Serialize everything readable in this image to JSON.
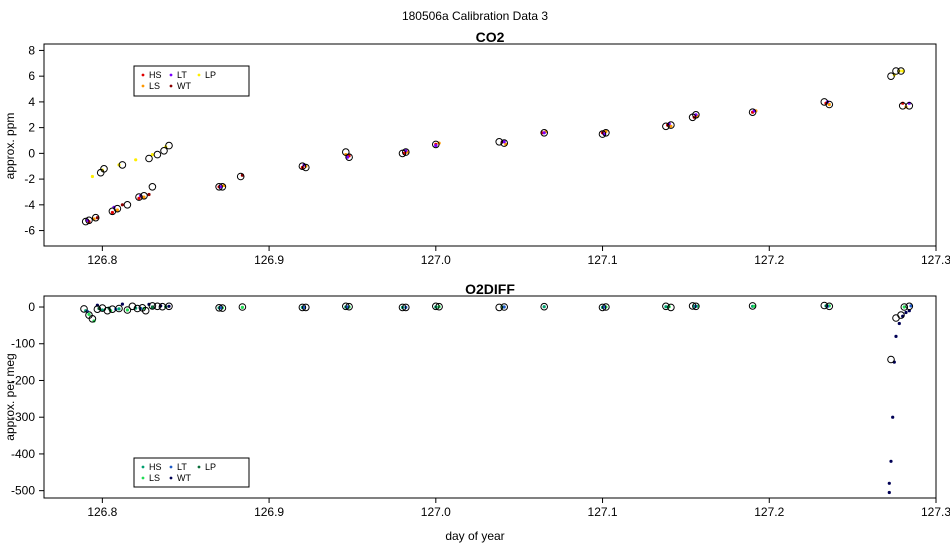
{
  "figure": {
    "title": "180506a   Calibration Data 3",
    "xlabel": "day of year"
  },
  "colors": {
    "HS": "#e00000",
    "LS": "#ff9900",
    "LT": "#7a00ff",
    "WT": "#8b0000",
    "LP": "#ffee00",
    "o2_HS": "#00a070",
    "o2_LS": "#22dd55",
    "o2_LT": "#1e5cc8",
    "o2_WT": "#000055",
    "o2_LP": "#0b6e3a",
    "marker_outline": "#000000"
  },
  "chart_data": [
    {
      "type": "scatter",
      "title": "CO2",
      "ylabel": "approx. ppm",
      "xlim": [
        126.765,
        127.3
      ],
      "ylim": [
        -7.2,
        8.5
      ],
      "xticks": [
        126.8,
        126.9,
        127.0,
        127.1,
        127.2,
        127.3
      ],
      "xtick_labels": [
        "126.8",
        "126.9",
        "127.0",
        "127.1",
        "127.2",
        "127.3"
      ],
      "yticks": [
        -6,
        -4,
        -2,
        0,
        2,
        4,
        6,
        8
      ],
      "ytick_labels": [
        "-6",
        "-4",
        "-2",
        "0",
        "2",
        "4",
        "6",
        "8"
      ],
      "legend": {
        "position": "top-left",
        "entries": [
          "HS",
          "LS",
          "LT",
          "WT",
          "LP"
        ]
      },
      "series": [
        {
          "name": "HS",
          "x": [
            126.792,
            126.806,
            126.822,
            126.87,
            126.92,
            126.948,
            126.981,
            127.0,
            127.04,
            127.064,
            127.1,
            127.139,
            127.155,
            127.19,
            127.234,
            127.28
          ],
          "y": [
            -5.3,
            -4.6,
            -3.5,
            -2.6,
            -1.1,
            -0.2,
            0.0,
            0.7,
            0.9,
            1.6,
            1.6,
            2.2,
            2.8,
            3.2,
            3.9,
            3.9
          ]
        },
        {
          "name": "LS",
          "x": [
            126.795,
            126.809,
            126.825,
            126.873,
            126.922,
            126.946,
            126.983,
            127.002,
            127.042,
            127.066,
            127.102,
            127.141,
            127.157,
            127.192,
            127.236,
            127.282
          ],
          "y": [
            -5.1,
            -4.4,
            -3.4,
            -2.5,
            -1.0,
            -0.1,
            0.1,
            0.8,
            0.7,
            1.7,
            1.7,
            2.1,
            2.9,
            3.3,
            3.8,
            3.6
          ]
        },
        {
          "name": "LT",
          "x": [
            126.791,
            126.807,
            126.823,
            126.871,
            126.921,
            126.947,
            126.982,
            127.0,
            127.041,
            127.065,
            127.101,
            127.14,
            127.156,
            127.191,
            127.235,
            127.284
          ],
          "y": [
            -5.2,
            -4.2,
            -3.3,
            -2.6,
            -0.9,
            -0.3,
            0.2,
            0.6,
            0.9,
            1.6,
            1.5,
            2.3,
            3.0,
            3.3,
            4.0,
            3.9
          ]
        },
        {
          "name": "WT",
          "x": [
            126.797,
            126.812,
            126.828,
            126.884
          ],
          "y": [
            -5.0,
            -4.0,
            -3.2,
            -1.7
          ]
        },
        {
          "name": "LP",
          "x": [
            126.794,
            126.8,
            126.81,
            126.82,
            126.83,
            126.838,
            127.275,
            127.278,
            127.28
          ],
          "y": [
            -1.8,
            -1.3,
            -0.9,
            -0.5,
            -0.1,
            0.5,
            6.1,
            6.4,
            6.4
          ]
        }
      ],
      "averages": {
        "x": [
          126.79,
          126.792,
          126.796,
          126.799,
          126.801,
          126.806,
          126.809,
          126.812,
          126.815,
          126.822,
          126.825,
          126.828,
          126.83,
          126.833,
          126.837,
          126.84,
          126.87,
          126.872,
          126.883,
          126.92,
          126.922,
          126.946,
          126.948,
          126.98,
          126.982,
          127.0,
          127.038,
          127.041,
          127.065,
          127.1,
          127.102,
          127.138,
          127.141,
          127.154,
          127.156,
          127.19,
          127.233,
          127.236,
          127.273,
          127.276,
          127.279,
          127.28,
          127.284
        ],
        "y": [
          -5.3,
          -5.2,
          -5.0,
          -1.5,
          -1.2,
          -4.5,
          -4.3,
          -0.9,
          -4.0,
          -3.4,
          -3.3,
          -0.4,
          -2.6,
          -0.1,
          0.2,
          0.6,
          -2.6,
          -2.6,
          -1.8,
          -1.0,
          -1.1,
          0.1,
          -0.3,
          0.0,
          0.1,
          0.7,
          0.9,
          0.8,
          1.6,
          1.5,
          1.6,
          2.1,
          2.2,
          2.8,
          3.0,
          3.2,
          4.0,
          3.8,
          6.0,
          6.4,
          6.4,
          3.7,
          3.7
        ]
      }
    },
    {
      "type": "scatter",
      "title": "O2DIFF",
      "ylabel": "approx. per meg",
      "xlim": [
        126.765,
        127.3
      ],
      "ylim": [
        -520,
        30
      ],
      "xticks": [
        126.8,
        126.9,
        127.0,
        127.1,
        127.2,
        127.3
      ],
      "xtick_labels": [
        "126.8",
        "126.9",
        "127.0",
        "127.1",
        "127.2",
        "127.3"
      ],
      "yticks": [
        -500,
        -400,
        -300,
        -200,
        -100,
        0
      ],
      "ytick_labels": [
        "-500",
        "-400",
        "-300",
        "-200",
        "-100",
        "0"
      ],
      "legend": {
        "position": "bottom-left",
        "entries": [
          "HS",
          "LS",
          "LT",
          "WT",
          "LP"
        ]
      },
      "series": [
        {
          "name": "HS",
          "x": [
            126.79,
            126.8,
            126.81,
            126.82,
            126.83,
            126.87,
            126.92,
            126.946,
            126.98,
            127.0,
            127.04,
            127.065,
            127.1,
            127.138,
            127.155,
            127.19,
            127.234
          ],
          "y": [
            -10,
            -8,
            -5,
            -3,
            -2,
            -2,
            -1,
            0,
            -1,
            0,
            0,
            1,
            -1,
            1,
            2,
            2,
            3
          ]
        },
        {
          "name": "LS",
          "x": [
            126.792,
            126.795,
            126.805,
            126.815,
            126.825,
            126.872,
            126.884,
            126.948,
            127.002,
            127.04,
            127.102,
            127.14,
            127.157,
            127.191,
            127.236,
            127.281
          ],
          "y": [
            -20,
            -38,
            -10,
            -8,
            -4,
            -2,
            -1,
            0,
            1,
            0,
            0,
            1,
            2,
            2,
            3,
            0
          ]
        },
        {
          "name": "LT",
          "x": [
            126.791,
            126.808,
            126.823,
            126.871,
            126.921,
            126.947,
            126.982,
            127.041,
            127.101,
            127.156,
            127.235,
            127.285
          ],
          "y": [
            -12,
            -6,
            -4,
            -2,
            -1,
            0,
            -1,
            0,
            0,
            2,
            2,
            3
          ]
        },
        {
          "name": "WT",
          "x": [
            126.797,
            126.812,
            126.828,
            126.835,
            126.84,
            127.272,
            127.272,
            127.273,
            127.274,
            127.275,
            127.276,
            127.278,
            127.28,
            127.282,
            127.284
          ],
          "y": [
            5,
            8,
            7,
            3,
            2,
            -505,
            -480,
            -420,
            -300,
            -150,
            -80,
            -45,
            -25,
            -15,
            -10
          ]
        },
        {
          "name": "LP",
          "x": [
            126.798,
            126.804,
            126.83,
            126.838
          ],
          "y": [
            -4,
            -3,
            0,
            1
          ]
        }
      ],
      "averages": {
        "x": [
          126.789,
          126.792,
          126.794,
          126.797,
          126.8,
          126.803,
          126.806,
          126.81,
          126.815,
          126.818,
          126.821,
          126.824,
          126.826,
          126.83,
          126.833,
          126.836,
          126.84,
          126.87,
          126.872,
          126.884,
          126.92,
          126.922,
          126.946,
          126.948,
          126.98,
          126.982,
          127.0,
          127.002,
          127.038,
          127.041,
          127.065,
          127.1,
          127.102,
          127.138,
          127.141,
          127.154,
          127.156,
          127.19,
          127.233,
          127.236,
          127.273,
          127.276,
          127.279,
          127.281,
          127.284
        ],
        "y": [
          -5,
          -22,
          -32,
          -6,
          -3,
          -10,
          -6,
          -4,
          -8,
          2,
          -4,
          -2,
          -10,
          3,
          2,
          1,
          2,
          -2,
          -3,
          0,
          -1,
          -1,
          2,
          1,
          -1,
          -1,
          2,
          1,
          -1,
          0,
          1,
          -1,
          0,
          2,
          -1,
          3,
          2,
          3,
          4,
          2,
          -143,
          -30,
          -22,
          0,
          2
        ]
      }
    }
  ]
}
